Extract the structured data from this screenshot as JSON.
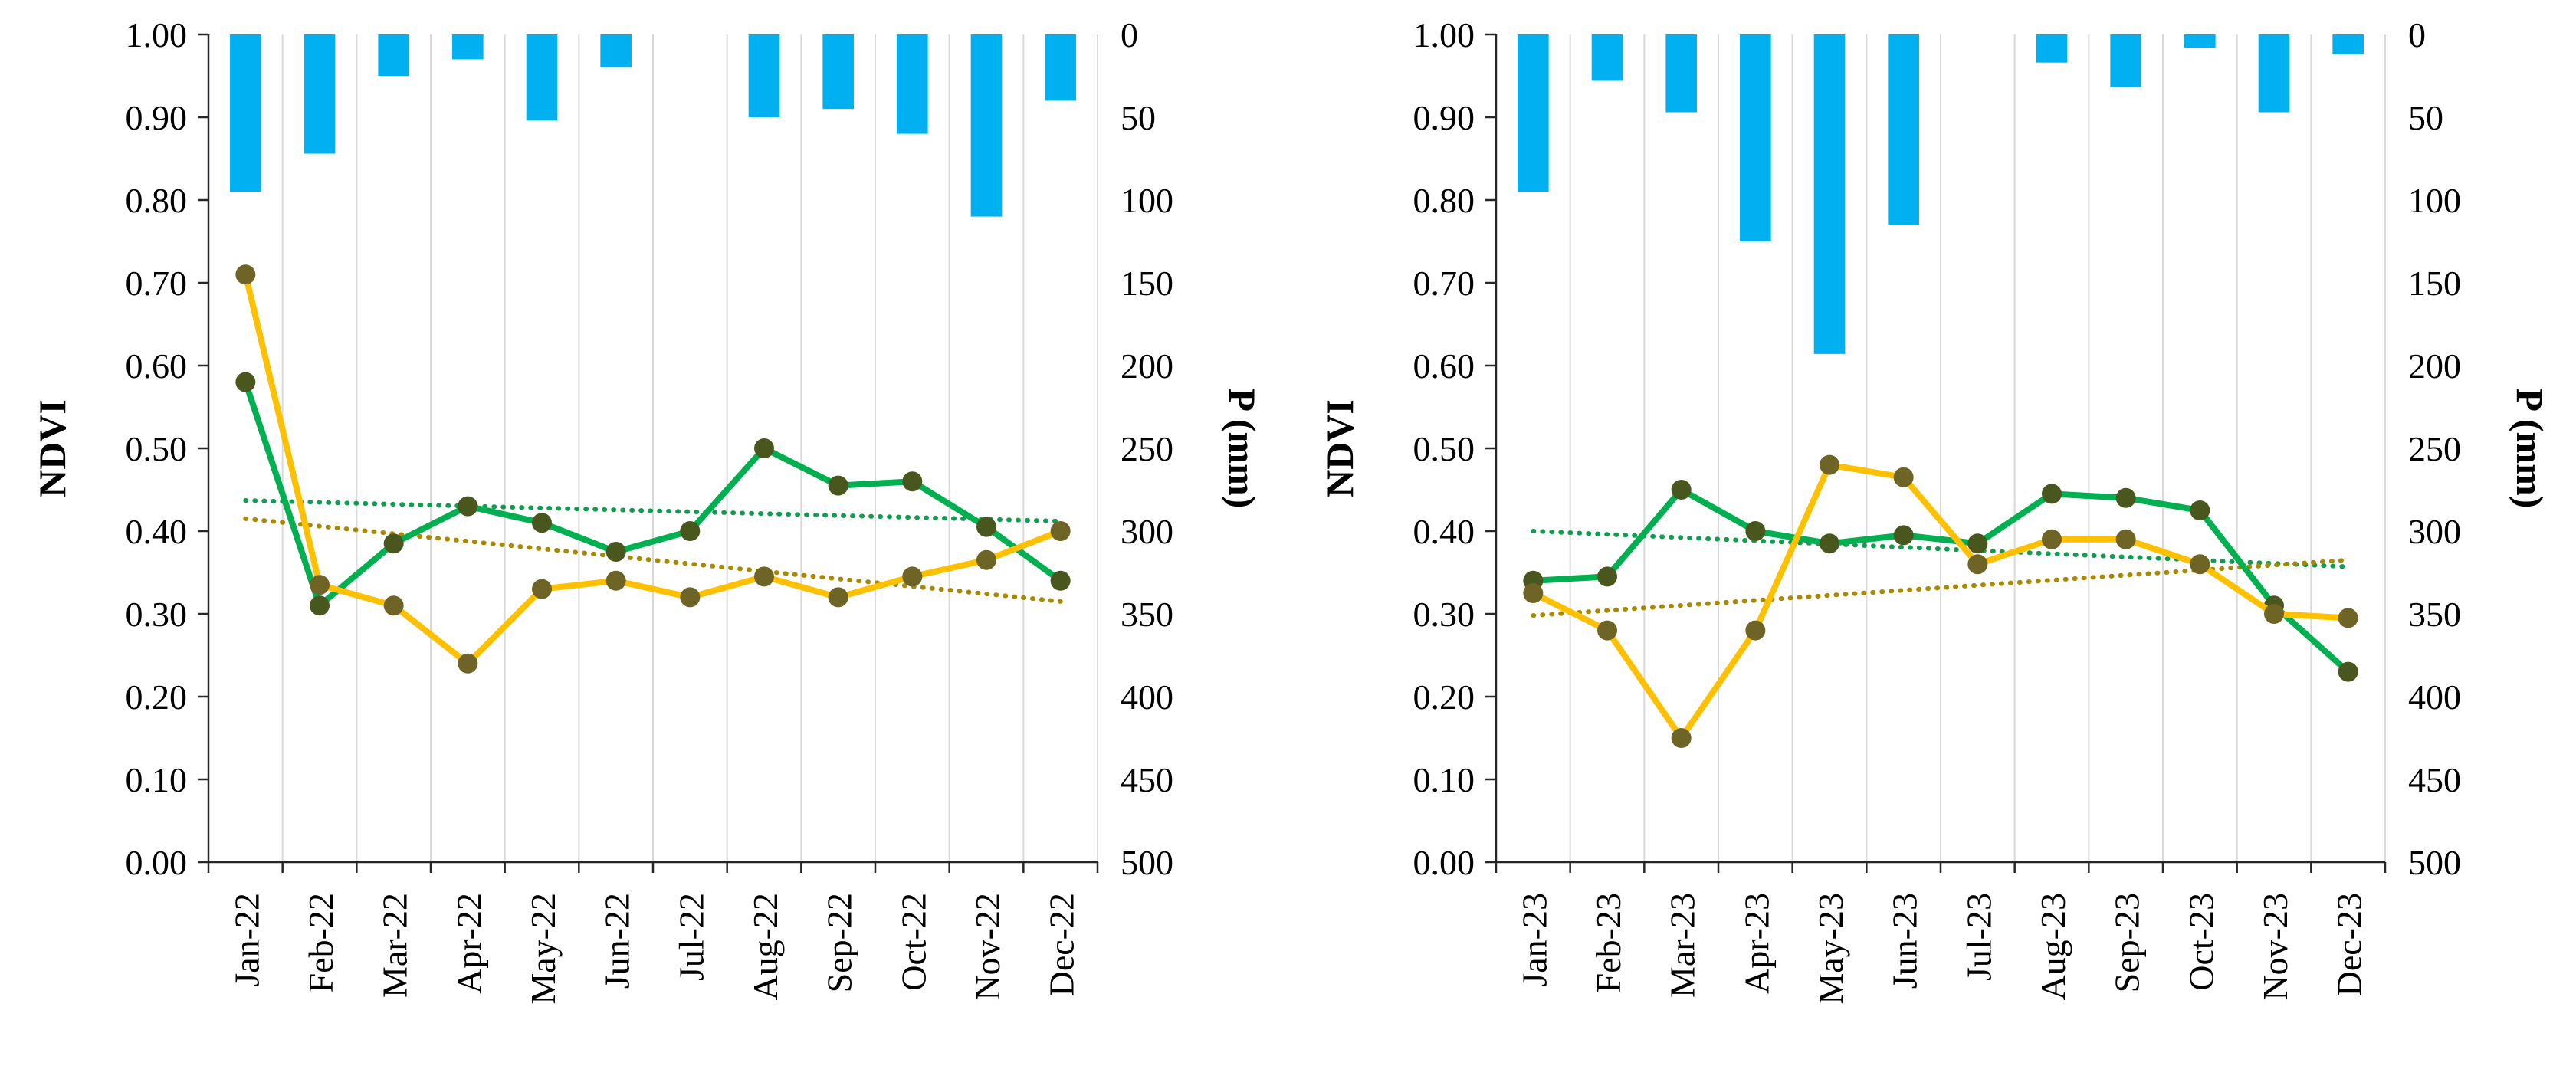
{
  "figure": {
    "description": "Two combo charts of NDVI lines (green, yellow) with dotted linear trends and inverted precipitation bars (blue), for 2022 and 2023",
    "background": "#ffffff",
    "legend": "none"
  },
  "colors": {
    "bar_blue": "#00B0F0",
    "line_green": "#00B050",
    "line_yellow": "#FFC000",
    "marker_green_series": "#49571F",
    "marker_yellow_series": "#6D6426",
    "trend_green": "#0D9E4E",
    "trend_dark_yellow": "#A98900",
    "gridline": "#D9D9D9",
    "axis_line": "#262626",
    "text": "#000000"
  },
  "chart_data": [
    {
      "id": "chart-2022",
      "type": "combo-bar-line",
      "categories": [
        "Jan-22",
        "Feb-22",
        "Mar-22",
        "Apr-22",
        "May-22",
        "Jun-22",
        "Jul-22",
        "Aug-22",
        "Sep-22",
        "Oct-22",
        "Nov-22",
        "Dec-22"
      ],
      "left_axis": {
        "label": "NDVI",
        "min": 0.0,
        "max": 1.0,
        "step": 0.1,
        "ticks": [
          "1.00",
          "0.90",
          "0.80",
          "0.70",
          "0.60",
          "0.50",
          "0.40",
          "0.30",
          "0.20",
          "0.10",
          "0.00"
        ]
      },
      "right_axis": {
        "label": "P (mm)",
        "min": 0,
        "max": 500,
        "step": 50,
        "inverted": true,
        "ticks": [
          "0",
          "50",
          "100",
          "150",
          "200",
          "250",
          "300",
          "350",
          "400",
          "450",
          "500"
        ]
      },
      "gridlines": {
        "vertical": true,
        "horizontal": false
      },
      "series": [
        {
          "name": "precipitation",
          "type": "bar",
          "axis": "right",
          "color": "#00B0F0",
          "values": [
            95,
            72,
            25,
            15,
            52,
            20,
            0,
            50,
            45,
            60,
            110,
            40
          ]
        },
        {
          "name": "ndvi-green",
          "type": "line",
          "axis": "left",
          "color": "#00B050",
          "marker_color": "#49571F",
          "values": [
            0.58,
            0.31,
            0.385,
            0.43,
            0.41,
            0.375,
            0.4,
            0.5,
            0.455,
            0.46,
            0.405,
            0.34
          ],
          "trend": {
            "style": "dotted",
            "color": "#0D9E4E",
            "start": 0.437,
            "end": 0.412
          }
        },
        {
          "name": "ndvi-yellow",
          "type": "line",
          "axis": "left",
          "color": "#FFC000",
          "marker_color": "#6D6426",
          "values": [
            0.71,
            0.335,
            0.31,
            0.24,
            0.33,
            0.34,
            0.32,
            0.345,
            0.32,
            0.345,
            0.365,
            0.4
          ],
          "trend": {
            "style": "dotted",
            "color": "#A98900",
            "start": 0.415,
            "end": 0.315
          }
        }
      ]
    },
    {
      "id": "chart-2023",
      "type": "combo-bar-line",
      "categories": [
        "Jan-23",
        "Feb-23",
        "Mar-23",
        "Apr-23",
        "May-23",
        "Jun-23",
        "Jul-23",
        "Aug-23",
        "Sep-23",
        "Oct-23",
        "Nov-23",
        "Dec-23"
      ],
      "left_axis": {
        "label": "NDVI",
        "min": 0.0,
        "max": 1.0,
        "step": 0.1,
        "ticks": [
          "1.00",
          "0.90",
          "0.80",
          "0.70",
          "0.60",
          "0.50",
          "0.40",
          "0.30",
          "0.20",
          "0.10",
          "0.00"
        ]
      },
      "right_axis": {
        "label": "P (mm)",
        "min": 0,
        "max": 500,
        "step": 50,
        "inverted": true,
        "ticks": [
          "0",
          "50",
          "100",
          "150",
          "200",
          "250",
          "300",
          "350",
          "400",
          "450",
          "500"
        ]
      },
      "gridlines": {
        "vertical": true,
        "horizontal": false
      },
      "series": [
        {
          "name": "precipitation",
          "type": "bar",
          "axis": "right",
          "color": "#00B0F0",
          "values": [
            95,
            28,
            47,
            125,
            193,
            115,
            0,
            17,
            32,
            8,
            47,
            12
          ]
        },
        {
          "name": "ndvi-green",
          "type": "line",
          "axis": "left",
          "color": "#00B050",
          "marker_color": "#49571F",
          "values": [
            0.34,
            0.345,
            0.45,
            0.4,
            0.385,
            0.395,
            0.385,
            0.445,
            0.44,
            0.425,
            0.31,
            0.23
          ],
          "trend": {
            "style": "dotted",
            "color": "#0D9E4E",
            "start": 0.4,
            "end": 0.357
          }
        },
        {
          "name": "ndvi-yellow",
          "type": "line",
          "axis": "left",
          "color": "#FFC000",
          "marker_color": "#6D6426",
          "values": [
            0.325,
            0.28,
            0.15,
            0.28,
            0.48,
            0.465,
            0.36,
            0.39,
            0.39,
            0.36,
            0.3,
            0.295
          ],
          "trend": {
            "style": "dotted",
            "color": "#A98900",
            "start": 0.298,
            "end": 0.365
          }
        }
      ]
    }
  ]
}
